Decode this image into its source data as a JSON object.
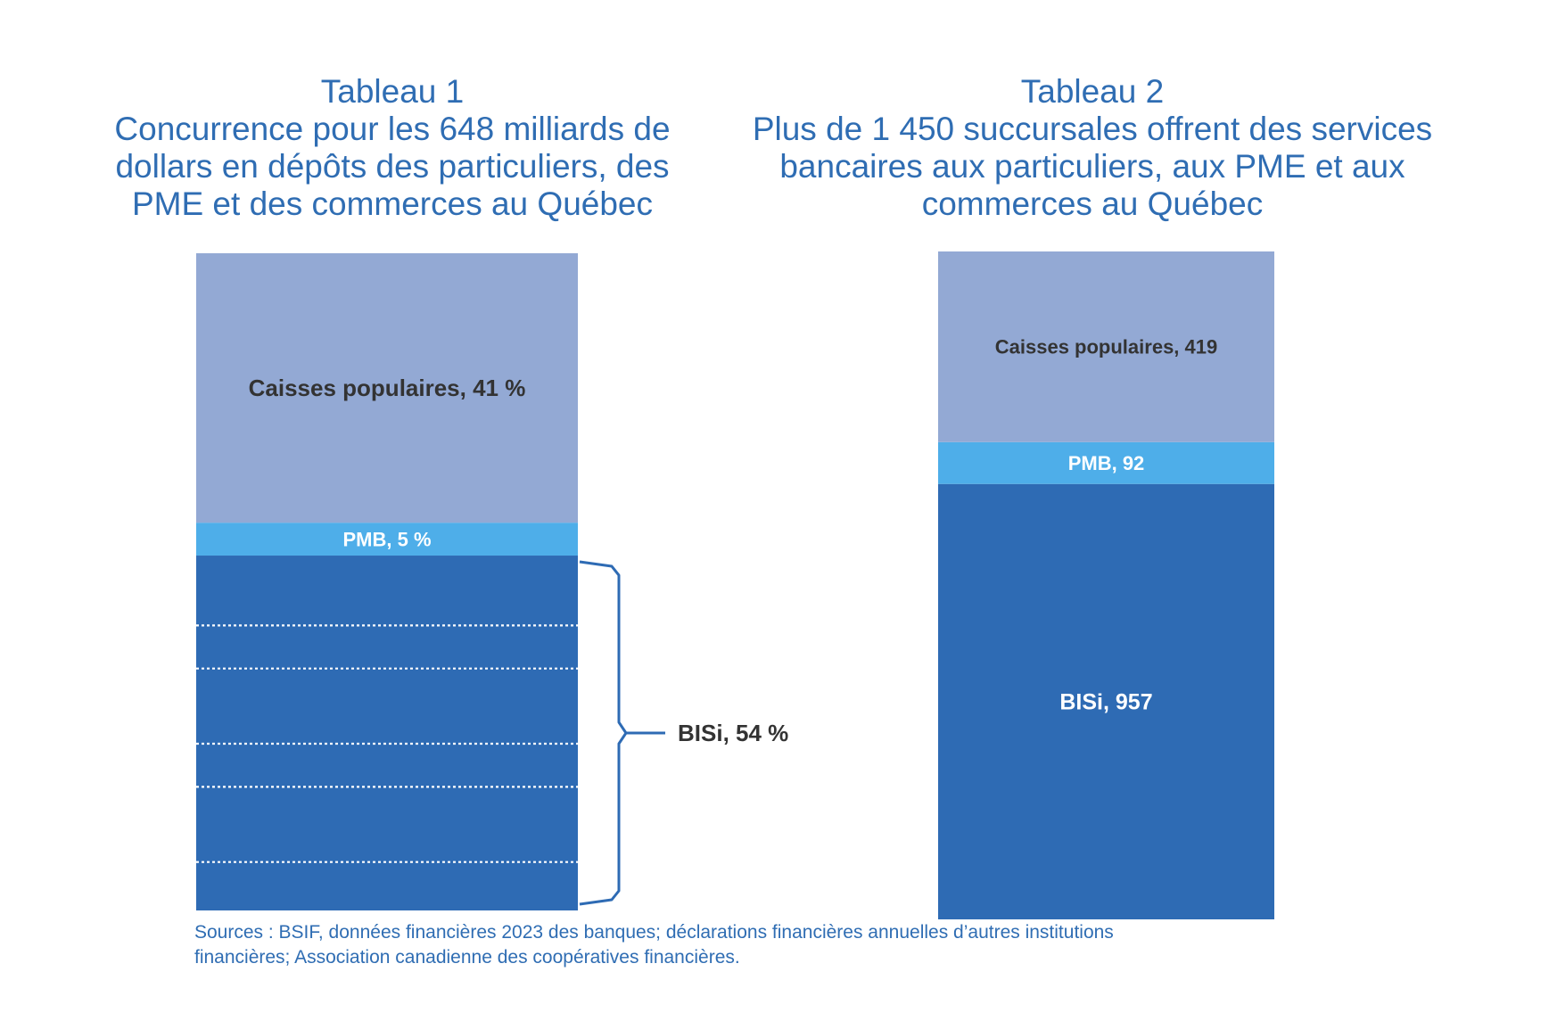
{
  "chart_data": [
    {
      "type": "bar",
      "stacked": true,
      "title": "Tableau 1",
      "subtitle_lines": [
        "Concurrence pour les 648 milliards de",
        "dollars en dépôts des particuliers, des",
        "PME et des commerces au Québec"
      ],
      "unit": "%",
      "series": [
        {
          "name": "BISi",
          "value": 54,
          "label": "BISi, 54 %",
          "color": "#2e6bb4",
          "subdivisions": 6
        },
        {
          "name": "PMB",
          "value": 5,
          "label": "PMB, 5 %",
          "color": "#4eaee9"
        },
        {
          "name": "Caisses populaires",
          "value": 41,
          "label": "Caisses populaires, 41 %",
          "color": "#93a9d4"
        }
      ]
    },
    {
      "type": "bar",
      "stacked": true,
      "title": "Tableau 2",
      "subtitle_lines": [
        "Plus de 1 450 succursales offrent des services",
        "bancaires aux particuliers, aux PME et aux",
        "commerces au Québec"
      ],
      "series": [
        {
          "name": "BISi",
          "value": 957,
          "label": "BISi, 957",
          "color": "#2e6bb4"
        },
        {
          "name": "PMB",
          "value": 92,
          "label": "PMB, 92",
          "color": "#4eaee9"
        },
        {
          "name": "Caisses populaires",
          "value": 419,
          "label": "Caisses populaires, 419",
          "color": "#93a9d4"
        }
      ]
    }
  ],
  "sources": {
    "line1": "Sources : BSIF, données financières 2023 des banques; déclarations financières annuelles d’autres institutions",
    "line2": "financières; Association canadienne des coopératives financières."
  }
}
